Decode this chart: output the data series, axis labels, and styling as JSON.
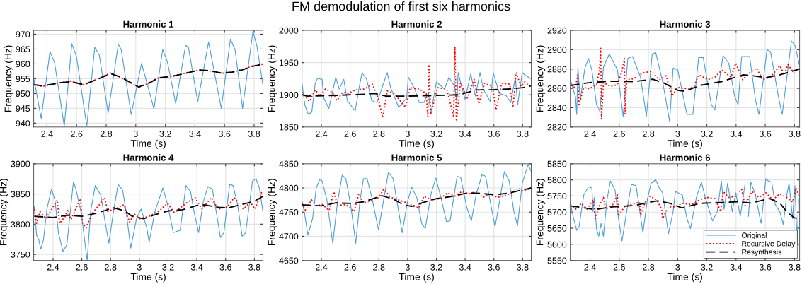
{
  "chart_data": [
    {
      "type": "line",
      "title": "Harmonic 1",
      "xlabel": "Time (s)",
      "ylabel": "Frequency (Hz)",
      "annotations": [
        "FM demodulation of first six harmonics"
      ],
      "xlim": [
        2.31,
        3.86
      ],
      "xticks": [
        2.4,
        2.6,
        2.8,
        3,
        3.2,
        3.4,
        3.6,
        3.8
      ],
      "ylim": [
        938.7,
        971.3
      ],
      "yticks": [
        940,
        945,
        950,
        955,
        960,
        965,
        970
      ],
      "grid": true,
      "series": [
        {
          "color": "#4d9fd6",
          "line_style": "solid",
          "x": [
            2.31,
            2.361,
            2.42,
            2.451,
            2.517,
            2.568,
            2.599,
            2.669,
            2.723,
            2.754,
            2.813,
            2.882,
            2.902,
            2.969,
            3.039,
            3.123,
            3.182,
            3.213,
            3.27,
            3.337,
            3.356,
            3.419,
            3.492,
            3.578,
            3.64,
            3.671,
            3.722,
            3.792,
            3.819,
            3.858
          ],
          "values": [
            955.3,
            941.6,
            964.2,
            960.5,
            939.0,
            966.8,
            962.5,
            939.0,
            965.6,
            962.9,
            943.4,
            966.7,
            964.8,
            942.9,
            960.2,
            944.8,
            964.8,
            960.9,
            946.6,
            966.3,
            965.6,
            947.2,
            967.4,
            945.0,
            968.4,
            964.8,
            945.0,
            971.0,
            966.0,
            953.3
          ]
        },
        {
          "color": "#ff0000",
          "line_style": "dotted",
          "x": [
            2.31,
            2.37,
            2.5,
            2.56,
            2.65,
            2.75,
            2.83,
            2.9,
            3.02,
            3.1,
            3.15,
            3.25,
            3.35,
            3.43,
            3.5,
            3.58,
            3.65,
            3.72,
            3.79,
            3.858
          ],
          "values": [
            953.1,
            952.4,
            953.8,
            954.1,
            952.9,
            955.1,
            956.9,
            955.4,
            952.1,
            953.7,
            955.2,
            955.9,
            957.1,
            958.0,
            957.6,
            956.8,
            957.2,
            958.1,
            959.3,
            959.9
          ]
        },
        {
          "color": "#000000",
          "line_style": "dashed",
          "x": [
            2.31,
            2.37,
            2.5,
            2.56,
            2.65,
            2.75,
            2.83,
            2.9,
            3.02,
            3.1,
            3.15,
            3.25,
            3.35,
            3.43,
            3.5,
            3.58,
            3.65,
            3.72,
            3.79,
            3.858
          ],
          "values": [
            953.0,
            952.6,
            953.7,
            954.0,
            953.0,
            955.0,
            956.7,
            955.5,
            952.2,
            953.8,
            955.3,
            955.8,
            957.0,
            957.9,
            957.7,
            956.9,
            957.2,
            958.0,
            959.2,
            959.9
          ]
        }
      ]
    },
    {
      "type": "line",
      "title": "Harmonic 2",
      "xlabel": "Time (s)",
      "ylabel": "Frequency (Hz)",
      "xlim": [
        2.265,
        3.86
      ],
      "xticks": [
        2.4,
        2.6,
        2.8,
        3,
        3.2,
        3.4,
        3.6,
        3.8
      ],
      "ylim": [
        1850,
        2000
      ],
      "yticks": [
        1850,
        1900,
        1950,
        2000
      ],
      "grid": true,
      "series": [
        {
          "color": "#4d9fd6",
          "line_style": "solid",
          "x": [
            2.266,
            2.285,
            2.309,
            2.333,
            2.357,
            2.373,
            2.405,
            2.416,
            2.452,
            2.5,
            2.524,
            2.556,
            2.58,
            2.635,
            2.667,
            2.683,
            2.715,
            2.75,
            2.787,
            2.858,
            2.882,
            2.938,
            2.993,
            3.005,
            3.05,
            3.081,
            3.113,
            3.145,
            3.16,
            3.2,
            3.256,
            3.288,
            3.327,
            3.343,
            3.351,
            3.399,
            3.439,
            3.471,
            3.503,
            3.526,
            3.574,
            3.595,
            3.638,
            3.685,
            3.717,
            3.749,
            3.765,
            3.797,
            3.813,
            3.858
          ],
          "values": [
            1916.5,
            1884,
            1869.8,
            1873,
            1918,
            1925.5,
            1924,
            1895,
            1878.8,
            1927.3,
            1909,
            1924,
            1891,
            1875,
            1916.5,
            1934,
            1924,
            1891,
            1888,
            1934.5,
            1911,
            1880.6,
            1895,
            1927.3,
            1909,
            1888,
            1888,
            1904,
            1869.8,
            1920,
            1909,
            1927.3,
            1913,
            1888,
            1934.5,
            1893,
            1932.7,
            1898,
            1934.5,
            1909,
            1889.6,
            1934.5,
            1902,
            1898.6,
            1888,
            1927.3,
            1884,
            1934.5,
            1931,
            1925
          ]
        },
        {
          "color": "#ff0000",
          "line_style": "dotted",
          "x": [
            2.266,
            2.317,
            2.357,
            2.389,
            2.428,
            2.476,
            2.508,
            2.548,
            2.587,
            2.635,
            2.699,
            2.755,
            2.795,
            2.826,
            2.858,
            2.906,
            2.985,
            3.017,
            3.081,
            3.129,
            3.14,
            3.148,
            3.16,
            3.208,
            3.272,
            3.32,
            3.329,
            3.339,
            3.367,
            3.415,
            3.463,
            3.495,
            3.535,
            3.59,
            3.614,
            3.654,
            3.71,
            3.733,
            3.754,
            3.789,
            3.813,
            3.858
          ],
          "values": [
            1904,
            1889.6,
            1907.6,
            1898.6,
            1909,
            1904,
            1891,
            1904,
            1902,
            1907.6,
            1909,
            1916.5,
            1895,
            1864.4,
            1906,
            1902,
            1880.6,
            1911,
            1909,
            1902,
            1866,
            1947,
            1869.8,
            1911,
            1909,
            1866,
            1974,
            1859,
            1918,
            1895,
            1924,
            1886,
            1918,
            1913,
            1877,
            1918,
            1916.5,
            1880.6,
            1934.5,
            1913,
            1920,
            1912
          ]
        },
        {
          "color": "#000000",
          "line_style": "dashed",
          "x": [
            2.266,
            2.3,
            2.5,
            2.7,
            2.77,
            2.85,
            3.0,
            3.2,
            3.36,
            3.42,
            3.48,
            3.6,
            3.7,
            3.8,
            3.858
          ],
          "values": [
            1900,
            1898,
            1899,
            1901,
            1902,
            1898,
            1898,
            1899,
            1900,
            1904,
            1907.5,
            1908,
            1909,
            1911,
            1914
          ]
        }
      ]
    },
    {
      "type": "line",
      "title": "Harmonic 3",
      "xlabel": "Time (s)",
      "ylabel": "Frequency (Hz)",
      "xlim": [
        2.265,
        3.835
      ],
      "xticks": [
        2.4,
        2.6,
        2.8,
        3,
        3.2,
        3.4,
        3.6,
        3.8
      ],
      "ylim": [
        2820,
        2920
      ],
      "yticks": [
        2820,
        2840,
        2860,
        2880,
        2900,
        2920
      ],
      "grid": true,
      "series": [
        {
          "color": "#4d9fd6",
          "line_style": "solid",
          "x": [
            2.266,
            2.301,
            2.309,
            2.317,
            2.333,
            2.365,
            2.389,
            2.413,
            2.445,
            2.46,
            2.468,
            2.492,
            2.532,
            2.588,
            2.619,
            2.627,
            2.659,
            2.691,
            2.746,
            2.786,
            2.826,
            2.85,
            2.897,
            2.945,
            2.969,
            3.001,
            3.064,
            3.104,
            3.144,
            3.175,
            3.231,
            3.255,
            3.311,
            3.35,
            3.39,
            3.414,
            3.438,
            3.493,
            3.533,
            3.557,
            3.612,
            3.636,
            3.692,
            3.716,
            3.779,
            3.803,
            3.835
          ],
          "values": [
            2869,
            2851,
            2833,
            2882,
            2848,
            2881,
            2891,
            2879,
            2843,
            2839,
            2836,
            2882,
            2895.5,
            2879,
            2840.4,
            2831,
            2891,
            2893,
            2871.6,
            2831,
            2895.5,
            2897,
            2867,
            2826,
            2881,
            2879,
            2833,
            2833,
            2892,
            2892,
            2843,
            2838,
            2894,
            2886,
            2852,
            2843,
            2893,
            2893,
            2848,
            2833,
            2900,
            2898,
            2850,
            2833,
            2909,
            2905,
            2883.5
          ]
        },
        {
          "color": "#ff0000",
          "line_style": "dotted",
          "x": [
            2.266,
            2.301,
            2.317,
            2.325,
            2.357,
            2.397,
            2.445,
            2.465,
            2.473,
            2.479,
            2.492,
            2.54,
            2.588,
            2.619,
            2.635,
            2.64,
            2.651,
            2.699,
            2.762,
            2.822,
            2.874,
            2.921,
            2.961,
            3.001,
            3.064,
            3.112,
            3.144,
            3.207,
            3.255,
            3.302,
            3.366,
            3.398,
            3.445,
            3.493,
            3.541,
            3.581,
            3.636,
            3.699,
            3.731,
            3.755,
            3.795,
            3.827
          ],
          "values": [
            2859.6,
            2862,
            2874,
            2843,
            2861,
            2859.6,
            2864,
            2878.8,
            2901.5,
            2828.4,
            2866,
            2862,
            2864,
            2877.6,
            2891,
            2833,
            2869,
            2870,
            2876,
            2877.6,
            2869,
            2873,
            2852,
            2861,
            2859.6,
            2862,
            2874,
            2869,
            2871.6,
            2878.8,
            2871.6,
            2886,
            2869,
            2876,
            2881,
            2869,
            2871.6,
            2883.5,
            2874,
            2884.7,
            2876,
            2881
          ]
        },
        {
          "color": "#000000",
          "line_style": "dashed",
          "x": [
            2.266,
            2.4,
            2.55,
            2.7,
            2.83,
            2.9,
            3.0,
            3.05,
            3.15,
            3.3,
            3.45,
            3.52,
            3.6,
            3.7,
            3.835
          ],
          "values": [
            2863,
            2866,
            2867.5,
            2867,
            2869.5,
            2866,
            2858,
            2857,
            2863,
            2867,
            2874,
            2873,
            2871,
            2874,
            2880
          ]
        }
      ]
    },
    {
      "type": "line",
      "title": "Harmonic 4",
      "xlabel": "Time (s)",
      "ylabel": "Frequency (Hz)",
      "xlim": [
        2.265,
        3.86
      ],
      "xticks": [
        2.4,
        2.6,
        2.8,
        3,
        3.2,
        3.4,
        3.6,
        3.8
      ],
      "ylim": [
        3740,
        3900
      ],
      "yticks": [
        3750,
        3800,
        3850,
        3900
      ],
      "grid": true,
      "series": [
        {
          "color": "#4d9fd6",
          "line_style": "solid",
          "x": [
            2.269,
            2.285,
            2.301,
            2.314,
            2.333,
            2.357,
            2.389,
            2.413,
            2.437,
            2.469,
            2.496,
            2.541,
            2.557,
            2.597,
            2.621,
            2.637,
            2.661,
            2.693,
            2.732,
            2.761,
            2.788,
            2.82,
            2.852,
            2.884,
            2.908,
            2.94,
            2.98,
            3.012,
            3.052,
            3.068,
            3.108,
            3.164,
            3.196,
            3.236,
            3.284,
            3.324,
            3.356,
            3.38,
            3.412,
            3.444,
            3.476,
            3.508,
            3.54,
            3.564,
            3.588,
            3.628,
            3.652,
            3.683,
            3.715,
            3.739,
            3.787,
            3.811,
            3.835,
            3.859
          ],
          "values": [
            3828.7,
            3782,
            3774,
            3758.6,
            3774,
            3825,
            3858,
            3840,
            3786,
            3755,
            3766,
            3869.6,
            3860,
            3817,
            3770,
            3740,
            3821,
            3864,
            3848,
            3805,
            3768.5,
            3821,
            3866,
            3856,
            3821,
            3760.5,
            3809,
            3825,
            3793.6,
            3770,
            3821,
            3860,
            3832.6,
            3786,
            3790,
            3864,
            3854,
            3821,
            3786,
            3836.5,
            3862,
            3858,
            3813,
            3778,
            3786,
            3866,
            3864,
            3832.6,
            3780,
            3786,
            3871.6,
            3875.5,
            3860,
            3821
          ]
        },
        {
          "color": "#ff0000",
          "line_style": "dotted",
          "x": [
            2.269,
            2.285,
            2.309,
            2.349,
            2.381,
            2.429,
            2.445,
            2.485,
            2.501,
            2.525,
            2.589,
            2.605,
            2.629,
            2.669,
            2.717,
            2.757,
            2.781,
            2.846,
            2.894,
            2.908,
            2.932,
            2.964,
            3.004,
            3.068,
            3.132,
            3.196,
            3.244,
            3.324,
            3.388,
            3.436,
            3.5,
            3.548,
            3.612,
            3.66,
            3.724,
            3.772,
            3.804,
            3.852
          ],
          "values": [
            3825,
            3801.4,
            3821,
            3809,
            3821,
            3840,
            3801.4,
            3813,
            3825,
            3807.6,
            3842.3,
            3801.4,
            3793.6,
            3817,
            3830.7,
            3844,
            3821,
            3826.8,
            3832.6,
            3819,
            3803.4,
            3817,
            3809,
            3813,
            3821,
            3834.6,
            3819,
            3834.6,
            3844,
            3825,
            3844,
            3825,
            3828.7,
            3844,
            3825,
            3836.5,
            3825,
            3854
          ]
        },
        {
          "color": "#000000",
          "line_style": "dashed",
          "x": [
            2.269,
            2.4,
            2.5,
            2.6,
            2.7,
            2.82,
            2.9,
            2.95,
            3.03,
            3.1,
            3.2,
            3.3,
            3.4,
            3.45,
            3.55,
            3.62,
            3.7,
            3.8,
            3.859
          ],
          "values": [
            3813,
            3811,
            3815,
            3813,
            3818,
            3827,
            3822,
            3813,
            3809,
            3815,
            3822,
            3824,
            3831,
            3832,
            3828,
            3827,
            3832,
            3838,
            3846
          ]
        }
      ]
    },
    {
      "type": "line",
      "title": "Harmonic 5",
      "xlabel": "Time (s)",
      "ylabel": "Frequency (Hz)",
      "xlim": [
        2.265,
        3.86
      ],
      "xticks": [
        2.4,
        2.6,
        2.8,
        3,
        3.2,
        3.4,
        3.6,
        3.8
      ],
      "ylim": [
        4650,
        4850
      ],
      "yticks": [
        4650,
        4700,
        4750,
        4800,
        4850
      ],
      "grid": true,
      "series": [
        {
          "color": "#4d9fd6",
          "line_style": "solid",
          "x": [
            2.265,
            2.281,
            2.306,
            2.339,
            2.364,
            2.388,
            2.405,
            2.438,
            2.479,
            2.512,
            2.545,
            2.57,
            2.603,
            2.639,
            2.669,
            2.693,
            2.718,
            2.751,
            2.797,
            2.825,
            2.866,
            2.899,
            2.932,
            2.962,
            2.998,
            3.028,
            3.064,
            3.097,
            3.122,
            3.163,
            3.196,
            3.229,
            3.27,
            3.295,
            3.344,
            3.369,
            3.41,
            3.443,
            3.476,
            3.517,
            3.542,
            3.575,
            3.608,
            3.641,
            3.673,
            3.706,
            3.739,
            3.764,
            3.797,
            3.838,
            3.86
          ],
          "values": [
            4773,
            4751,
            4702.6,
            4736.6,
            4800,
            4817,
            4814.5,
            4775.5,
            4685.5,
            4770.7,
            4826.6,
            4819.3,
            4766,
            4685.5,
            4775.5,
            4819.3,
            4819.3,
            4780.4,
            4713.3,
            4761,
            4832.5,
            4819.3,
            4761,
            4707.4,
            4770.7,
            4801.3,
            4780.4,
            4727,
            4715.7,
            4787.7,
            4820.8,
            4783,
            4730.3,
            4731.8,
            4824.2,
            4821.8,
            4761,
            4731.8,
            4785.3,
            4827.6,
            4824.2,
            4770.7,
            4719.6,
            4775.5,
            4834,
            4814.5,
            4751.2,
            4722,
            4809.6,
            4848.5,
            4834
          ]
        },
        {
          "color": "#ff0000",
          "line_style": "dotted",
          "x": [
            2.265,
            2.29,
            2.331,
            2.364,
            2.405,
            2.454,
            2.487,
            2.512,
            2.57,
            2.627,
            2.66,
            2.693,
            2.751,
            2.8,
            2.833,
            2.883,
            2.932,
            2.982,
            3.031,
            3.08,
            3.113,
            3.163,
            3.229,
            3.278,
            3.327,
            3.377,
            3.426,
            3.476,
            3.525,
            3.575,
            3.624,
            3.69,
            3.739,
            3.772,
            3.805,
            3.86
          ],
          "values": [
            4768,
            4753.6,
            4775.5,
            4763.4,
            4765.8,
            4753.6,
            4792.6,
            4763.4,
            4765.8,
            4751.2,
            4787.7,
            4768.2,
            4775.5,
            4780.4,
            4797.4,
            4780.4,
            4775.5,
            4770.7,
            4763.4,
            4758.5,
            4783,
            4775.5,
            4778,
            4790.1,
            4783,
            4792.6,
            4787.7,
            4792.6,
            4780.4,
            4787.7,
            4780.4,
            4785.3,
            4792.6,
            4799.9,
            4792.6,
            4799.9
          ]
        },
        {
          "color": "#000000",
          "line_style": "dashed",
          "x": [
            2.265,
            2.4,
            2.5,
            2.62,
            2.7,
            2.82,
            2.9,
            2.97,
            3.03,
            3.1,
            3.2,
            3.3,
            3.42,
            3.5,
            3.6,
            3.7,
            3.8,
            3.86
          ],
          "values": [
            4765,
            4763,
            4769,
            4768,
            4772,
            4784,
            4777,
            4765,
            4762,
            4769,
            4778,
            4782,
            4790,
            4789,
            4786,
            4789,
            4796,
            4800
          ]
        }
      ]
    },
    {
      "type": "line",
      "title": "Harmonic 6",
      "xlabel": "Time (s)",
      "ylabel": "Frequency (Hz)",
      "xlim": [
        2.265,
        3.835
      ],
      "xticks": [
        2.4,
        2.6,
        2.8,
        3,
        3.2,
        3.4,
        3.6,
        3.8
      ],
      "ylim": [
        5550,
        5850
      ],
      "yticks": [
        5550,
        5600,
        5650,
        5700,
        5750,
        5800,
        5850
      ],
      "grid": true,
      "legend": "bottom right",
      "series": [
        {
          "name": "Original",
          "color": "#4d9fd6",
          "line_style": "solid",
          "x": [
            2.266,
            2.284,
            2.309,
            2.325,
            2.357,
            2.389,
            2.413,
            2.421,
            2.429,
            2.445,
            2.46,
            2.476,
            2.492,
            2.516,
            2.54,
            2.572,
            2.595,
            2.619,
            2.651,
            2.683,
            2.715,
            2.73,
            2.762,
            2.794,
            2.818,
            2.85,
            2.874,
            2.897,
            2.921,
            2.937,
            2.969,
            2.985,
            3.032,
            3.064,
            3.088,
            3.128,
            3.163,
            3.191,
            3.239,
            3.271,
            3.299,
            3.318,
            3.342,
            3.374,
            3.398,
            3.429,
            3.461,
            3.477,
            3.485,
            3.501,
            3.533,
            3.564,
            3.572,
            3.604,
            3.62,
            3.644,
            3.668,
            3.699,
            3.723,
            3.747,
            3.763,
            3.787,
            3.803,
            3.819,
            3.827
          ],
          "values": [
            5727.4,
            5687,
            5643.4,
            5654.4,
            5753,
            5778.5,
            5775,
            5701.8,
            5745.6,
            5647,
            5625,
            5665,
            5625,
            5738.3,
            5796.7,
            5767.5,
            5680,
            5610.6,
            5701.8,
            5785.8,
            5782,
            5738.3,
            5636,
            5742,
            5789.4,
            5800.4,
            5775,
            5760,
            5683.6,
            5632.5,
            5701.8,
            5764,
            5753,
            5680,
            5648.5,
            5745.6,
            5793,
            5742,
            5672.6,
            5701.8,
            5796.7,
            5709,
            5789.4,
            5701.8,
            5760,
            5687,
            5785.8,
            null,
            5687,
            5793,
            5753,
            5680,
            5665.4,
            5804,
            5796.7,
            5793,
            5723.7,
            5701.8,
            5661.7,
            5753,
            5789.4,
            5680,
            5782,
            5599.6,
            5738.3
          ]
        },
        {
          "name": "Recursive Delay",
          "color": "#ff0000",
          "line_style": "dotted",
          "x": [
            2.266,
            2.301,
            2.341,
            2.381,
            2.421,
            2.437,
            2.46,
            2.492,
            2.508,
            2.556,
            2.588,
            2.595,
            2.635,
            2.683,
            2.739,
            2.746,
            2.778,
            2.81,
            2.858,
            2.89,
            2.897,
            2.937,
            2.985,
            3.032,
            3.096,
            3.152,
            3.2,
            3.255,
            3.295,
            3.312,
            3.35,
            3.398,
            3.438,
            3.461,
            3.509,
            3.557,
            3.604,
            3.652,
            3.699,
            3.747,
            3.787,
            3.811,
            3.827
          ],
          "values": [
            5723.7,
            5709,
            5727.4,
            5709,
            5738.3,
            5680,
            5716.4,
            5745.6,
            5709,
            5723.7,
            5753,
            5687,
            5716.4,
            5723.7,
            5731,
            5690.9,
            5731,
            5749.3,
            5738.3,
            5709,
            5680,
            5716.4,
            5716.4,
            5727.4,
            5723.7,
            5738.3,
            5745.6,
            5742,
            5701.8,
            5764,
            5745.6,
            5749.3,
            5771,
            5720,
            5764,
            5745.6,
            5760,
            5738.3,
            5756.6,
            5745.6,
            5731,
            5775,
            5753
          ]
        },
        {
          "name": "Resynthesis",
          "color": "#000000",
          "line_style": "dashed",
          "x": [
            2.266,
            2.35,
            2.43,
            2.55,
            2.7,
            2.8,
            2.86,
            2.95,
            3.03,
            3.15,
            3.3,
            3.42,
            3.5,
            3.63,
            3.7,
            3.75,
            3.8,
            3.835
          ],
          "values": [
            5719,
            5714,
            5708,
            5716,
            5720,
            5730,
            5735,
            5727,
            5713,
            5727,
            5730,
            5732,
            5728,
            5742,
            5728,
            5700,
            5682,
            5680
          ]
        }
      ]
    }
  ]
}
